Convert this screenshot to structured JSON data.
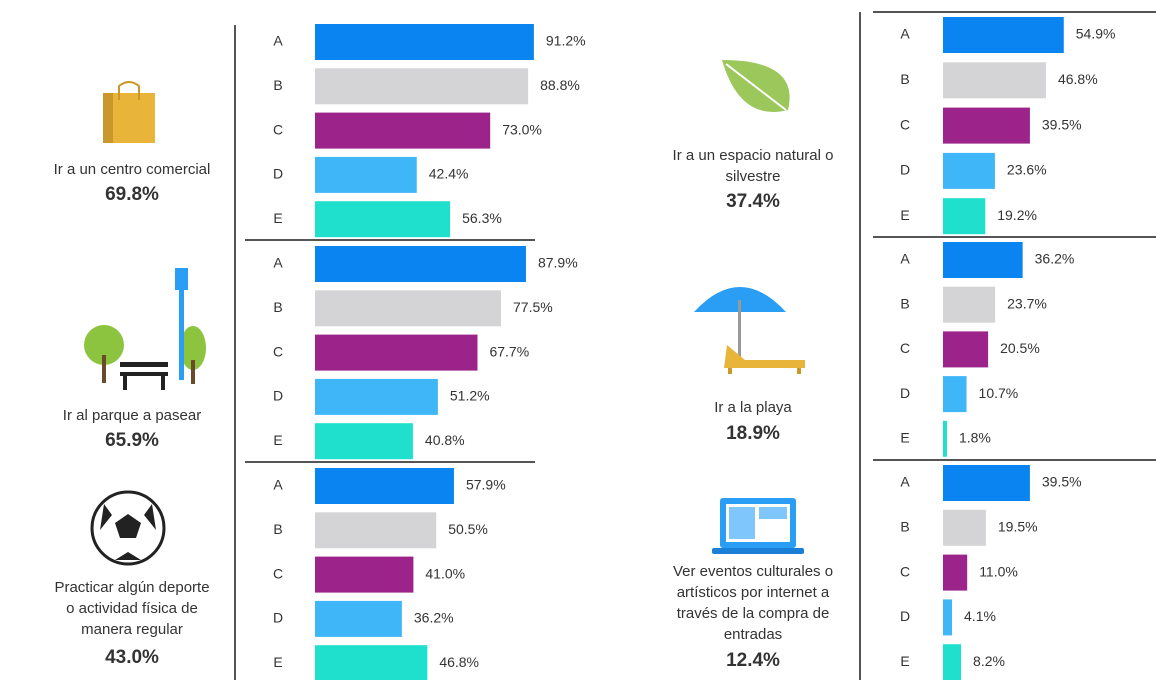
{
  "chart_data": [
    {
      "type": "bar",
      "orientation": "horizontal",
      "title": [
        "Ir a un centro comercial"
      ],
      "subtitle": "69.8%",
      "categories": [
        "A",
        "B",
        "C",
        "D",
        "E"
      ],
      "values": [
        91.2,
        88.8,
        73.0,
        42.4,
        56.3
      ],
      "value_labels": [
        "91.2%",
        "88.8%",
        "73.0%",
        "42.4%",
        "56.3%"
      ],
      "colors": [
        "#0a84f0",
        "#d4d4d6",
        "#9b2389",
        "#3fb6f7",
        "#1ee0cc"
      ]
    },
    {
      "type": "bar",
      "orientation": "horizontal",
      "title": [
        "Ir al parque a pasear"
      ],
      "subtitle": "65.9%",
      "categories": [
        "A",
        "B",
        "C",
        "D",
        "E"
      ],
      "values": [
        87.9,
        77.5,
        67.7,
        51.2,
        40.8
      ],
      "value_labels": [
        "87.9%",
        "77.5%",
        "67.7%",
        "51.2%",
        "40.8%"
      ],
      "colors": [
        "#0a84f0",
        "#d4d4d6",
        "#9b2389",
        "#3fb6f7",
        "#1ee0cc"
      ]
    },
    {
      "type": "bar",
      "orientation": "horizontal",
      "title": [
        "Practicar algún deporte",
        "o actividad física de",
        "manera regular"
      ],
      "subtitle": "43.0%",
      "categories": [
        "A",
        "B",
        "C",
        "D",
        "E"
      ],
      "values": [
        57.9,
        50.5,
        41.0,
        36.2,
        46.8
      ],
      "value_labels": [
        "57.9%",
        "50.5%",
        "41.0%",
        "36.2%",
        "46.8%"
      ],
      "colors": [
        "#0a84f0",
        "#d4d4d6",
        "#9b2389",
        "#3fb6f7",
        "#1ee0cc"
      ]
    },
    {
      "type": "bar",
      "orientation": "horizontal",
      "title": [
        "Ir a un espacio natural o",
        "silvestre"
      ],
      "subtitle": "37.4%",
      "categories": [
        "A",
        "B",
        "C",
        "D",
        "E"
      ],
      "values": [
        54.9,
        46.8,
        39.5,
        23.6,
        19.2
      ],
      "value_labels": [
        "54.9%",
        "46.8%",
        "39.5%",
        "23.6%",
        "19.2%"
      ],
      "colors": [
        "#0a84f0",
        "#d4d4d6",
        "#9b2389",
        "#3fb6f7",
        "#1ee0cc"
      ]
    },
    {
      "type": "bar",
      "orientation": "horizontal",
      "title": [
        "Ir a la playa"
      ],
      "subtitle": "18.9%",
      "categories": [
        "A",
        "B",
        "C",
        "D",
        "E"
      ],
      "values": [
        36.2,
        23.7,
        20.5,
        10.7,
        1.8
      ],
      "value_labels": [
        "36.2%",
        "23.7%",
        "20.5%",
        "10.7%",
        "1.8%"
      ],
      "colors": [
        "#0a84f0",
        "#d4d4d6",
        "#9b2389",
        "#3fb6f7",
        "#1ee0cc"
      ]
    },
    {
      "type": "bar",
      "orientation": "horizontal",
      "title": [
        "Ver eventos culturales o",
        "artísticos por internet a",
        "través de la compra de",
        "entradas"
      ],
      "subtitle": "12.4%",
      "categories": [
        "A",
        "B",
        "C",
        "D",
        "E"
      ],
      "values": [
        39.5,
        19.5,
        11.0,
        4.1,
        8.2
      ],
      "value_labels": [
        "39.5%",
        "19.5%",
        "11.0%",
        "4.1%",
        "8.2%"
      ],
      "colors": [
        "#0a84f0",
        "#d4d4d6",
        "#9b2389",
        "#3fb6f7",
        "#1ee0cc"
      ]
    }
  ]
}
